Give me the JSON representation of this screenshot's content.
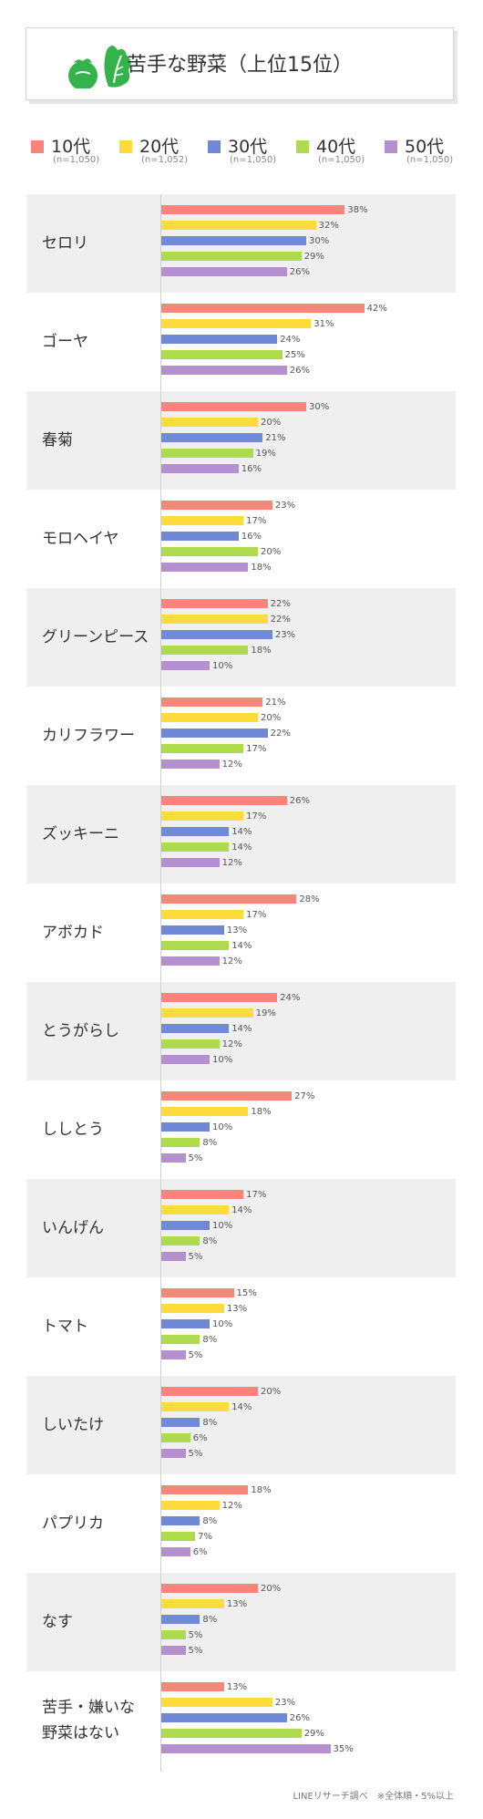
{
  "title": "苦手な野菜（上位15位）",
  "footnote": "LINEリサーチ調べ　※全体順・5%以上",
  "colors": {
    "10s": "#f7857a",
    "20s": "#fddb3a",
    "30s": "#6f89d6",
    "40s": "#aedb4c",
    "50s": "#b490cf",
    "band": "#efefef",
    "icon_green": "#34b34a"
  },
  "legend": [
    {
      "label": "10代",
      "n": "(n=1,050)"
    },
    {
      "label": "20代",
      "n": "(n=1,052)"
    },
    {
      "label": "30代",
      "n": "(n=1,050)"
    },
    {
      "label": "40代",
      "n": "(n=1,050)"
    },
    {
      "label": "50代",
      "n": "(n=1,050)"
    }
  ],
  "chart_data": {
    "type": "bar",
    "orientation": "horizontal",
    "unit": "%",
    "categories": [
      "セロリ",
      "ゴーヤ",
      "春菊",
      "モロヘイヤ",
      "グリーンピース",
      "カリフラワー",
      "ズッキーニ",
      "アボカド",
      "とうがらし",
      "ししとう",
      "いんげん",
      "トマト",
      "しいたけ",
      "パプリカ",
      "なす",
      "苦手・嫌いな野菜はない"
    ],
    "category_lines": [
      [
        "セロリ"
      ],
      [
        "ゴーヤ"
      ],
      [
        "春菊"
      ],
      [
        "モロヘイヤ"
      ],
      [
        "グリーンピース"
      ],
      [
        "カリフラワー"
      ],
      [
        "ズッキーニ"
      ],
      [
        "アボカド"
      ],
      [
        "とうがらし"
      ],
      [
        "ししとう"
      ],
      [
        "いんげん"
      ],
      [
        "トマト"
      ],
      [
        "しいたけ"
      ],
      [
        "パプリカ"
      ],
      [
        "なす"
      ],
      [
        "苦手・嫌いな",
        "野菜はない"
      ]
    ],
    "series": [
      {
        "name": "10代",
        "values": [
          38,
          42,
          30,
          23,
          22,
          21,
          26,
          28,
          24,
          27,
          17,
          15,
          20,
          18,
          20,
          13
        ]
      },
      {
        "name": "20代",
        "values": [
          32,
          31,
          20,
          17,
          22,
          20,
          17,
          17,
          19,
          18,
          14,
          13,
          14,
          12,
          13,
          23
        ]
      },
      {
        "name": "30代",
        "values": [
          30,
          24,
          21,
          16,
          23,
          22,
          14,
          13,
          14,
          10,
          10,
          10,
          8,
          8,
          8,
          26
        ]
      },
      {
        "name": "40代",
        "values": [
          29,
          25,
          19,
          20,
          18,
          17,
          14,
          14,
          12,
          8,
          8,
          8,
          6,
          7,
          5,
          29
        ]
      },
      {
        "name": "50代",
        "values": [
          26,
          26,
          16,
          18,
          10,
          12,
          12,
          12,
          10,
          5,
          5,
          5,
          5,
          6,
          5,
          35
        ]
      }
    ]
  }
}
